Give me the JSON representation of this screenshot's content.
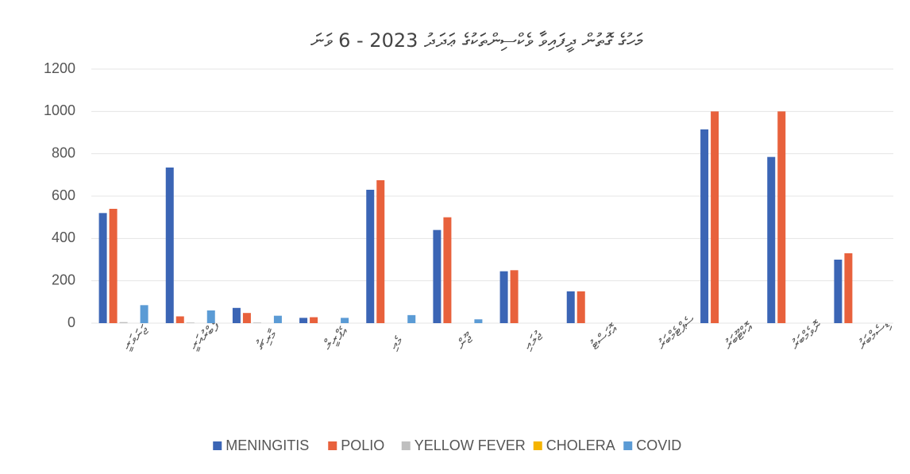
{
  "chart_data": {
    "type": "bar",
    "title": "މަހުގެ ގޮތުން ދީފައިވާ ވެކްސިންތަކުގެ ޢަދަދު 2023 - 6 ވަނަ",
    "categories": [
      "ޖަނަވަރީ",
      "ފެބްރުއަރީ",
      "މާރިޗު",
      "އެޕްރީލް",
      "މެއި",
      "ޖޫން",
      "ޖުލައި",
      "އޮގަސްޓު",
      "ސެޕްޓެމްބަރު",
      "އޮކްޓޫބަރު",
      "ނޮވެމްބަރު",
      "ޑިސެމްބަރު"
    ],
    "series": [
      {
        "name": "MENINGITIS",
        "color": "#3b65b5",
        "values": [
          520,
          735,
          72,
          25,
          630,
          440,
          245,
          150,
          0,
          915,
          785,
          300
        ]
      },
      {
        "name": "POLIO",
        "color": "#e8613c",
        "values": [
          540,
          32,
          48,
          28,
          675,
          500,
          250,
          150,
          0,
          1000,
          1000,
          330
        ]
      },
      {
        "name": "YELLOW FEVER",
        "color": "#bfbfbf",
        "values": [
          5,
          3,
          3,
          0,
          0,
          0,
          0,
          0,
          0,
          0,
          0,
          0
        ]
      },
      {
        "name": "CHOLERA",
        "color": "#f5b400",
        "values": [
          0,
          0,
          0,
          0,
          0,
          0,
          0,
          0,
          0,
          0,
          0,
          0
        ]
      },
      {
        "name": "COVID",
        "color": "#5b9bd5",
        "values": [
          85,
          60,
          35,
          25,
          38,
          18,
          0,
          0,
          0,
          0,
          0,
          0
        ]
      }
    ],
    "ylim": [
      0,
      1200
    ],
    "yticks": [
      0,
      200,
      400,
      600,
      800,
      1000,
      1200
    ],
    "grid": true,
    "legend": "bottom"
  }
}
